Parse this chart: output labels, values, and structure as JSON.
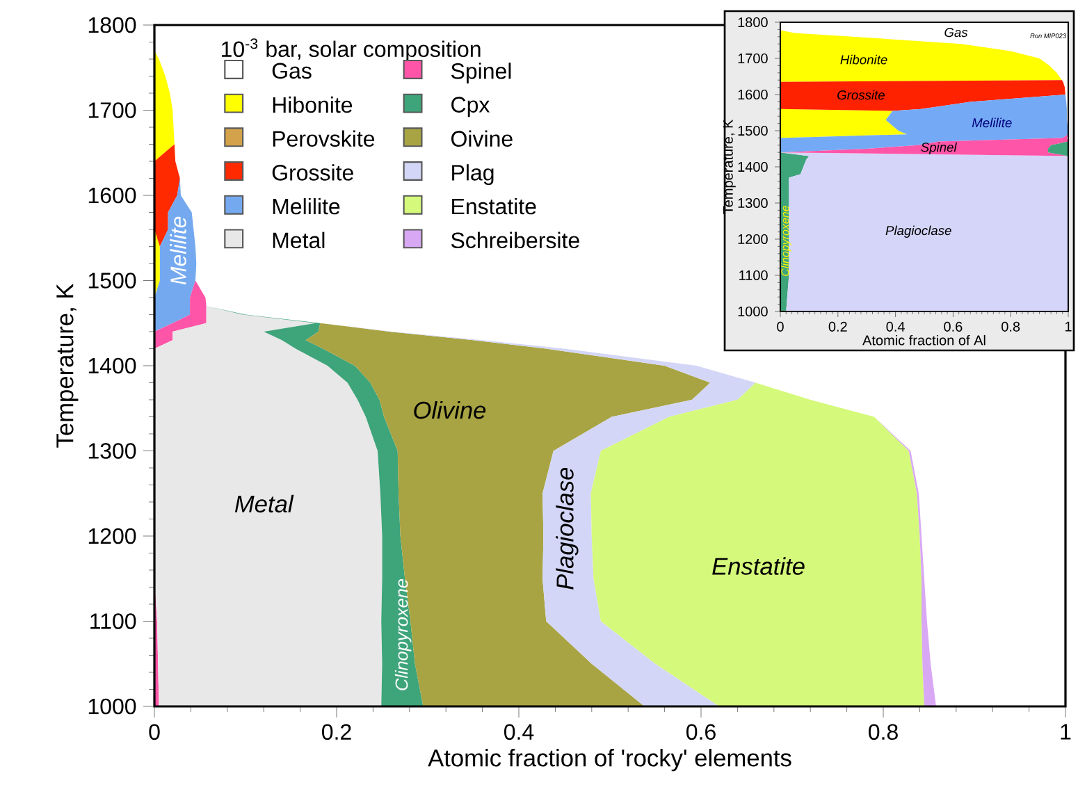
{
  "chart_data": [
    {
      "type": "area",
      "stacked": true,
      "orientation": "horizontal",
      "xlabel": "Atomic fraction of 'rocky' elements",
      "ylabel": "Temperature, K",
      "xlim": [
        0,
        1
      ],
      "ylim": [
        1000,
        1800
      ],
      "xticks": [
        0,
        0.2,
        0.4,
        0.6,
        0.8,
        1
      ],
      "yticks": [
        1000,
        1100,
        1200,
        1300,
        1400,
        1500,
        1600,
        1700,
        1800
      ],
      "legend": "top left",
      "legend_title": "10$^{-3}$ bar, solar composition",
      "x": [
        1000,
        1050,
        1100,
        1150,
        1200,
        1250,
        1300,
        1340,
        1360,
        1380,
        1400,
        1420,
        1430,
        1440,
        1450,
        1460,
        1470,
        1480,
        1500,
        1520,
        1540,
        1560,
        1580,
        1600,
        1620,
        1640,
        1660,
        1680,
        1700,
        1720,
        1740,
        1760,
        1770
      ],
      "series": [
        {
          "name": "Gas",
          "color": "#ffffff",
          "values": [
            null,
            null,
            null,
            null,
            null,
            null,
            null,
            null,
            null,
            null,
            null,
            null,
            null,
            null,
            null,
            null,
            null,
            null,
            null,
            null,
            null,
            null,
            null,
            null,
            null,
            null,
            null,
            null,
            null,
            null,
            null,
            null,
            null
          ]
        },
        {
          "name": "Hibonite",
          "color": "#ffff00",
          "values": [
            0,
            0,
            0,
            0,
            0,
            0,
            0,
            0,
            0,
            0,
            0,
            0,
            0,
            0,
            0,
            0,
            0,
            0,
            0.006,
            0.006,
            0.006,
            0,
            0,
            0,
            0,
            0,
            0.022,
            0.021,
            0.02,
            0.017,
            0.012,
            0.005,
            0
          ]
        },
        {
          "name": "Perovskite",
          "color": "#d4a24a",
          "values": [
            null,
            null,
            null,
            null,
            null,
            null,
            null,
            null,
            null,
            null,
            null,
            null,
            null,
            null,
            null,
            null,
            null,
            null,
            null,
            null,
            null,
            null,
            null,
            null,
            null,
            null,
            null,
            null,
            null,
            null,
            null,
            null,
            null
          ]
        },
        {
          "name": "Grossite",
          "color": "#ff2a00",
          "values": [
            0,
            0,
            0,
            0,
            0,
            0,
            0,
            0,
            0,
            0,
            0,
            0,
            0,
            0,
            0,
            0,
            0,
            0,
            0,
            0,
            0,
            0.015,
            0.015,
            0.025,
            0.028,
            0.023,
            0,
            0,
            0,
            0,
            0,
            0,
            0
          ]
        },
        {
          "name": "Melilite",
          "color": "#74a9f0",
          "values": [
            0,
            0,
            0,
            0,
            0,
            0,
            0,
            0,
            0,
            0,
            0,
            0,
            0,
            0,
            0.02,
            0.039,
            0.039,
            0.039,
            0.039,
            0.04,
            0.039,
            0.028,
            0.026,
            0.004,
            0,
            0,
            0,
            0,
            0,
            0,
            0,
            0,
            0
          ]
        },
        {
          "name": "Spinel",
          "color": "#ff55a8",
          "values": [
            0.005,
            0.004,
            0.003,
            0,
            0,
            0,
            0,
            0,
            0,
            0,
            0,
            0,
            0.02,
            0.02,
            0.037,
            0.018,
            0.018,
            0.017,
            0,
            0,
            0,
            0,
            0,
            0,
            0,
            0,
            0,
            0,
            0,
            0,
            0,
            0,
            0
          ]
        },
        {
          "name": "Metal",
          "color": "#e8e8e8",
          "values": [
            0.244,
            0.246,
            0.246,
            0.25,
            0.25,
            0.248,
            0.245,
            0.232,
            0.223,
            0.212,
            0.19,
            0.155,
            0.12,
            0.1,
            0.12,
            0.04,
            0,
            0,
            0,
            0,
            0,
            0,
            0,
            0,
            0,
            0,
            0,
            0,
            0,
            0,
            0,
            0,
            0
          ]
        },
        {
          "name": "Cpx",
          "color": "#3ea47a",
          "values": [
            0.046,
            0.036,
            0.032,
            0.025,
            0.02,
            0.02,
            0.022,
            0.02,
            0.024,
            0.025,
            0.03,
            0.03,
            0.026,
            0.06,
            0.005,
            0.003,
            0,
            0,
            0,
            0,
            0,
            0,
            0,
            0,
            0,
            0,
            0,
            0,
            0,
            0,
            0,
            0,
            0
          ]
        },
        {
          "name": "Oivine",
          "color": "#a8a443",
          "values": [
            0.243,
            0.194,
            0.149,
            0.151,
            0.157,
            0.158,
            0.171,
            0.25,
            0.343,
            0.373,
            0.34,
            0.245,
            0.184,
            0.078,
            0,
            0,
            0,
            0,
            0,
            0,
            0,
            0,
            0,
            0,
            0,
            0,
            0,
            0,
            0,
            0,
            0,
            0,
            0
          ]
        },
        {
          "name": "Plag",
          "color": "#d4d6f7",
          "values": [
            0.082,
            0.07,
            0.06,
            0.056,
            0.053,
            0.053,
            0.052,
            0.063,
            0.05,
            0.05,
            0.035,
            0.02,
            0.01,
            0.003,
            0,
            0,
            0,
            0,
            0,
            0,
            0,
            0,
            0,
            0,
            0,
            0,
            0,
            0,
            0,
            0,
            0,
            0,
            0
          ]
        },
        {
          "name": "Enstatite",
          "color": "#d5f97a",
          "values": [
            0.225,
            0.293,
            0.352,
            0.36,
            0.36,
            0.358,
            0.338,
            0.225,
            0.08,
            0,
            0,
            0,
            0,
            0,
            0,
            0,
            0,
            0,
            0,
            0,
            0,
            0,
            0,
            0,
            0,
            0,
            0,
            0,
            0,
            0,
            0,
            0,
            0
          ]
        },
        {
          "name": "Schreibersite",
          "color": "#d9a8f5",
          "values": [
            0.013,
            0.009,
            0.006,
            0.003,
            0.002,
            0.002,
            0.002,
            0,
            0,
            0,
            0,
            0,
            0,
            0,
            0,
            0,
            0,
            0,
            0,
            0,
            0,
            0,
            0,
            0,
            0,
            0,
            0,
            0,
            0,
            0,
            0,
            0,
            0
          ]
        }
      ],
      "annotations": [
        "Metal",
        "Olivine",
        "Enstatite",
        "Plagioclase",
        "Clinopyroxene",
        "Melilite"
      ]
    },
    {
      "type": "area",
      "stacked": true,
      "orientation": "horizontal",
      "xlabel": "Atomic fraction of Al",
      "ylabel": "Temperature, K",
      "xlim": [
        0,
        1
      ],
      "ylim": [
        1000,
        1800
      ],
      "xticks": [
        0,
        0.2,
        0.4,
        0.6,
        0.8,
        1
      ],
      "yticks": [
        1000,
        1100,
        1200,
        1300,
        1400,
        1500,
        1600,
        1700,
        1800
      ],
      "x": [
        1000,
        1100,
        1200,
        1300,
        1370,
        1380,
        1420,
        1430,
        1440,
        1450,
        1460,
        1470,
        1480,
        1490,
        1500,
        1530,
        1555,
        1560,
        1580,
        1600,
        1620,
        1635,
        1640,
        1660,
        1680,
        1700,
        1720,
        1740,
        1760,
        1770,
        1778
      ],
      "series": [
        {
          "color": "#3ea47a",
          "values": [
            0.02,
            0.03,
            0.03,
            0.03,
            0.03,
            0.07,
            0.09,
            0.1,
            0,
            null,
            null,
            null,
            null,
            null,
            null,
            null,
            null,
            null,
            null,
            null,
            null,
            null,
            null,
            null,
            null,
            null,
            null,
            null,
            null,
            null,
            null
          ]
        },
        {
          "color": "#d5d5f9",
          "values": [
            0.98,
            0.97,
            0.97,
            0.97,
            0.97,
            0.93,
            0.91,
            0.9,
            0,
            null,
            null,
            null,
            null,
            null,
            null,
            null,
            null,
            null,
            null,
            null,
            null,
            null,
            null,
            null,
            null,
            null,
            null,
            null,
            null,
            null,
            null
          ]
        },
        {
          "color": "#ffff00",
          "values": [
            null,
            null,
            null,
            null,
            null,
            null,
            null,
            null,
            null,
            null,
            null,
            null,
            0,
            0.44,
            0.41,
            0.366,
            0.39,
            0,
            null,
            null,
            null,
            0,
            0.978,
            0.96,
            0.935,
            0.9,
            0.8,
            0.63,
            0.25,
            0.05,
            0
          ]
        },
        {
          "color": "#ff2200",
          "values": [
            null,
            null,
            null,
            null,
            null,
            null,
            null,
            null,
            null,
            null,
            null,
            null,
            null,
            null,
            null,
            null,
            0,
            0.49,
            0.66,
            0.99,
            0.988,
            0.982,
            0,
            null,
            null,
            null,
            null,
            null,
            null,
            null,
            null
          ]
        },
        {
          "color": "#74aaf5",
          "values": [
            null,
            null,
            null,
            null,
            null,
            null,
            null,
            null,
            0,
            0.3,
            0.48,
            0.55,
            0.98,
            0.56,
            0.59,
            0.629,
            0.605,
            0.505,
            0.333,
            0,
            null,
            null,
            null,
            null,
            null,
            null,
            null,
            null,
            null,
            null,
            null
          ]
        },
        {
          "color": "#ff55a8",
          "values": [
            null,
            null,
            null,
            null,
            null,
            null,
            null,
            0,
            0.93,
            0.63,
            0.46,
            0.45,
            0.015,
            0,
            null,
            null,
            null,
            null,
            null,
            null,
            null,
            null,
            null,
            null,
            null,
            null,
            null,
            null,
            null,
            null,
            null
          ]
        },
        {
          "color": "#3ea47a",
          "values": [
            null,
            null,
            null,
            null,
            null,
            null,
            null,
            0,
            0.07,
            0.07,
            0.06,
            0,
            null,
            null,
            null,
            null,
            null,
            null,
            null,
            null,
            null,
            null,
            null,
            null,
            null,
            null,
            null,
            null,
            null,
            null,
            null
          ]
        }
      ],
      "annotations": [
        "Gas",
        "Hibonite",
        "Grossite",
        "Melilite",
        "Spinel",
        "Plagioclase",
        "Clinopyroxene",
        "Ron MIP023"
      ]
    }
  ]
}
